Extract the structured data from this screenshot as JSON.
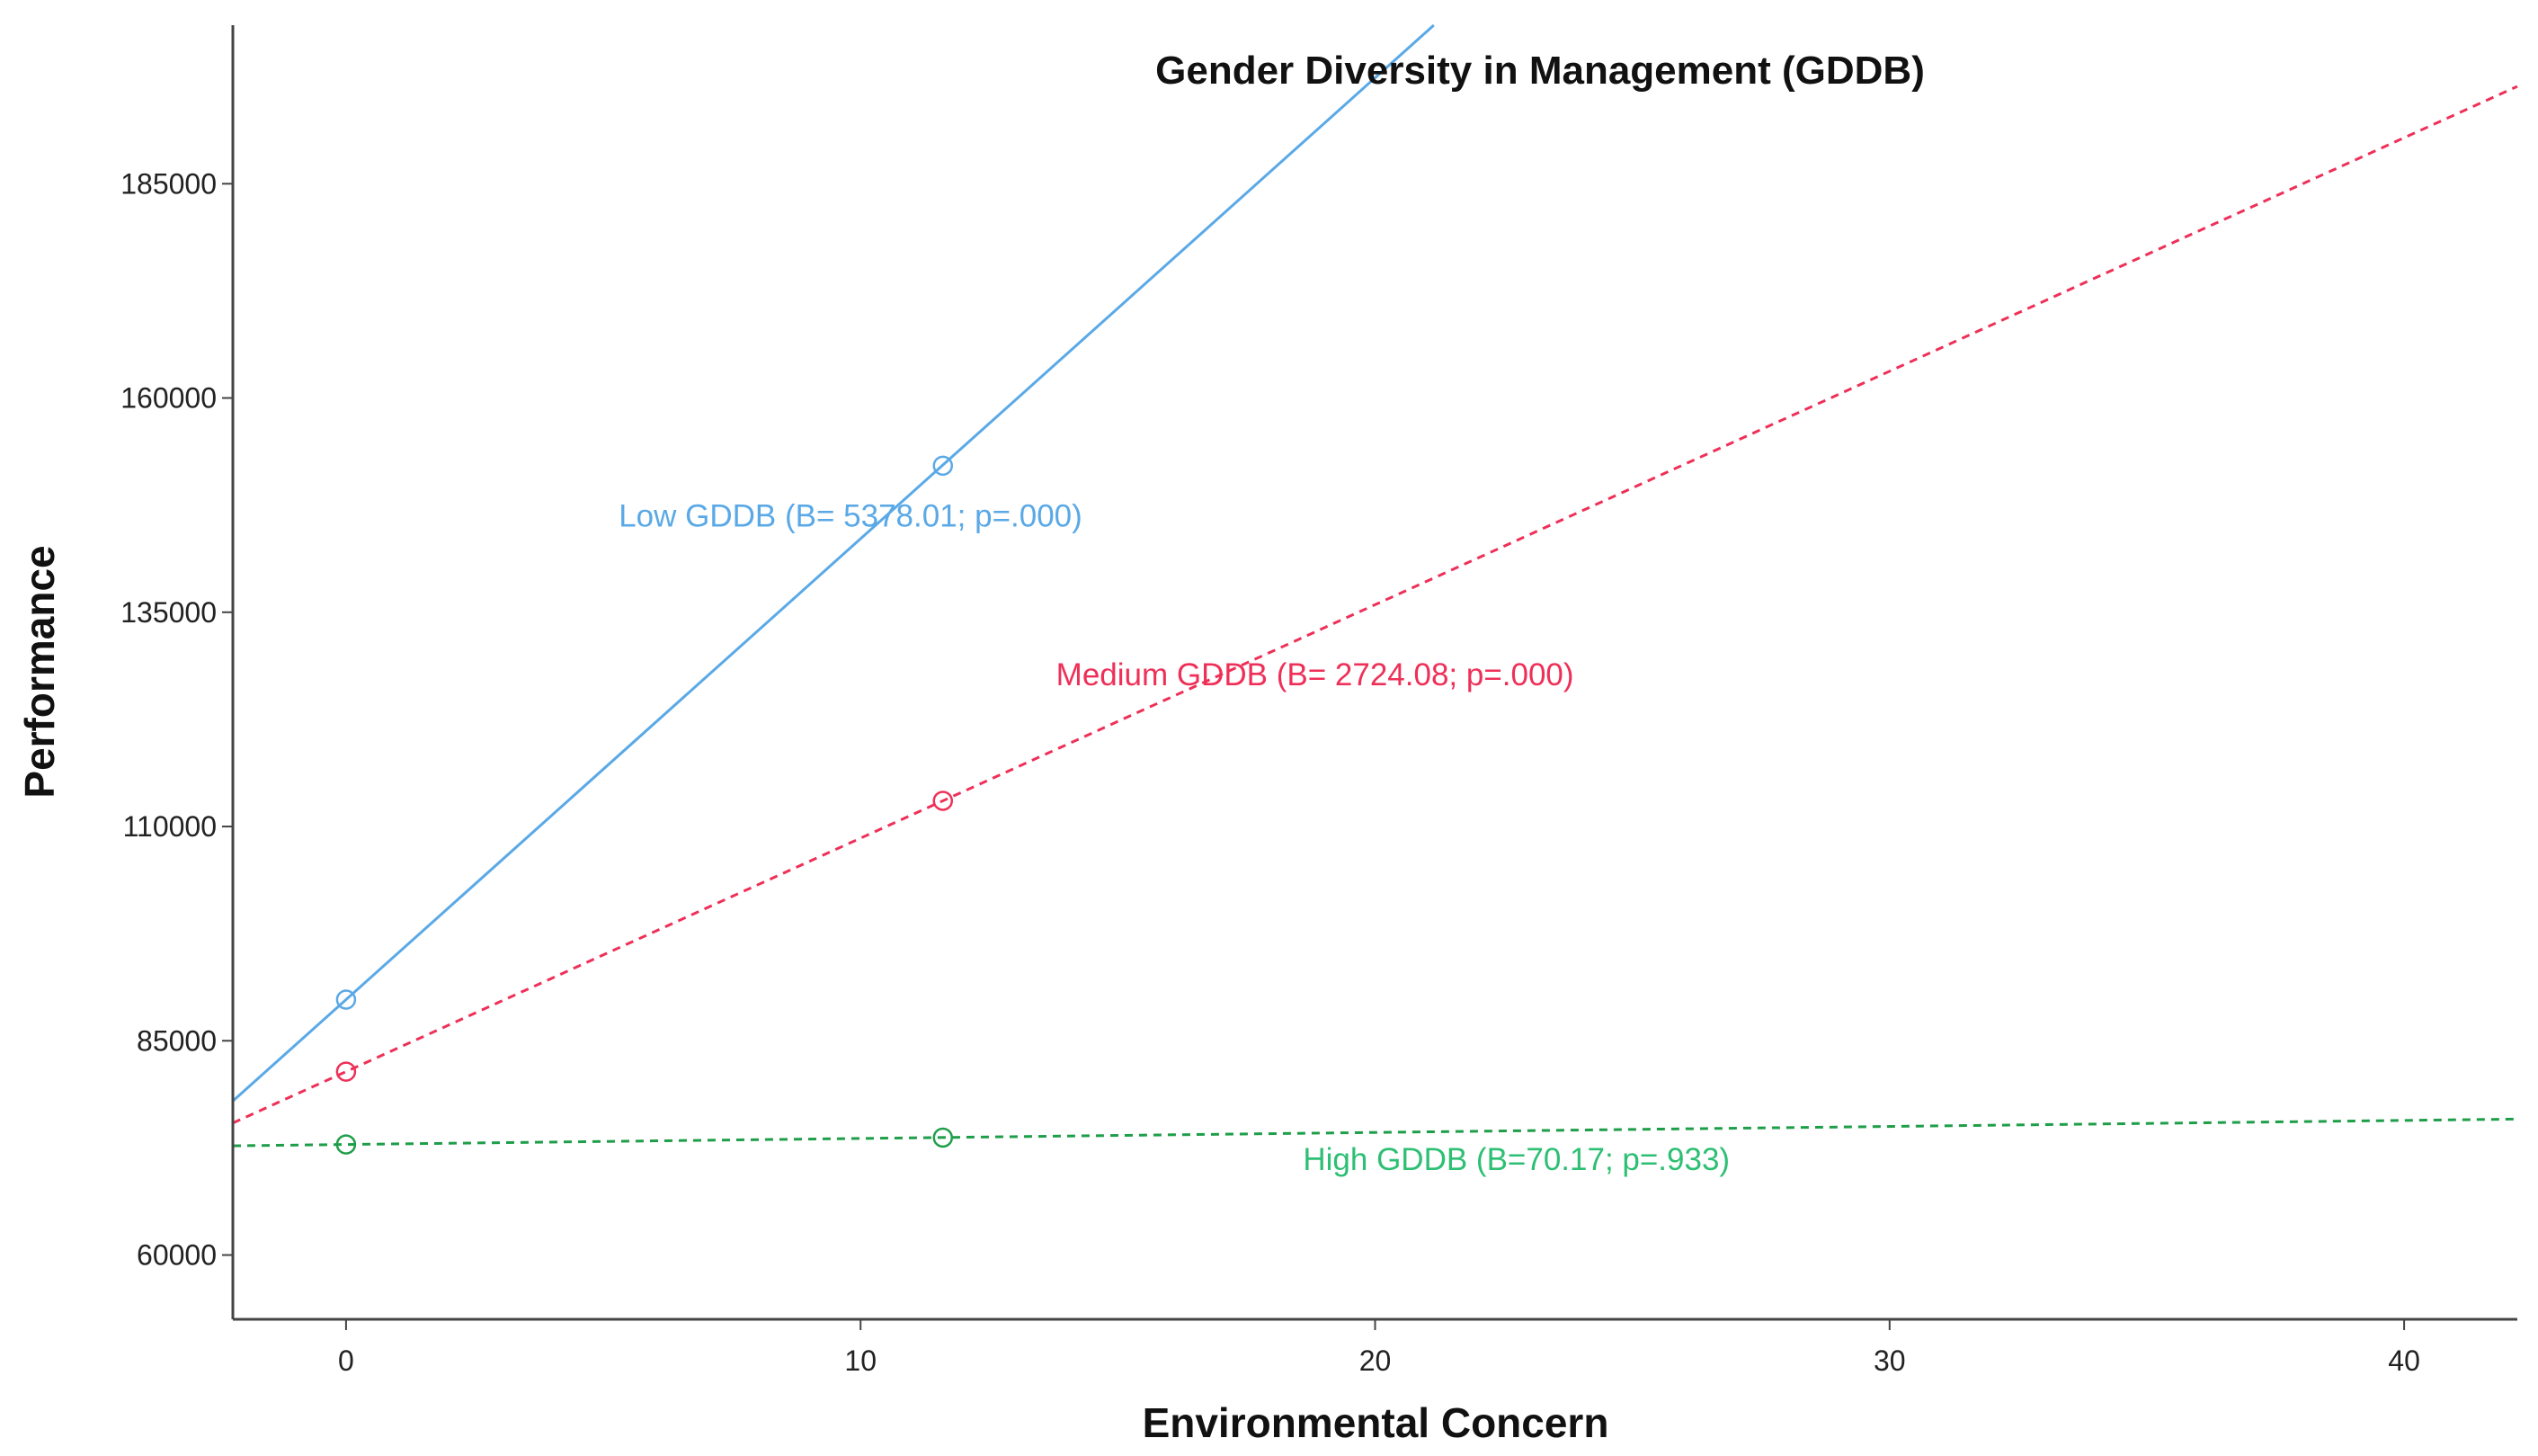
{
  "chart_data": {
    "type": "line",
    "title": "Gender Diversity in Management (GDDB)",
    "xlabel": "Environmental Concern",
    "ylabel": "Performance",
    "xlim": [
      -2.2,
      42.2
    ],
    "ylim": [
      52500,
      203500
    ],
    "xticks": [
      0,
      10,
      20,
      30,
      40
    ],
    "yticks": [
      60000,
      85000,
      110000,
      135000,
      160000,
      185000
    ],
    "grid": false,
    "series": [
      {
        "name": "Low GDDB",
        "label": "Low GDDB (B= 5378.01; p=.000)",
        "color": "#5aa9e6",
        "dash": "solid",
        "intercept": 89800,
        "slope": 5378.01,
        "points": [
          {
            "x": 0,
            "y": 89800
          },
          {
            "x": 11.6,
            "y": 152100
          }
        ]
      },
      {
        "name": "Medium GDDB",
        "label": "Medium GDDB (B= 2724.08; p=.000)",
        "color": "#ee3058",
        "dash": "dashed",
        "intercept": 81400,
        "slope": 2724.08,
        "points": [
          {
            "x": 0,
            "y": 81400
          },
          {
            "x": 11.6,
            "y": 113000
          }
        ]
      },
      {
        "name": "High GDDB",
        "label": "High GDDB (B=70.17; p=.933)",
        "color": "#1f9e4a",
        "label_color": "#2dbf73",
        "dash": "dashed",
        "intercept": 72900,
        "slope": 70.17,
        "points": [
          {
            "x": 0,
            "y": 72900
          },
          {
            "x": 11.6,
            "y": 73700
          }
        ]
      }
    ]
  }
}
